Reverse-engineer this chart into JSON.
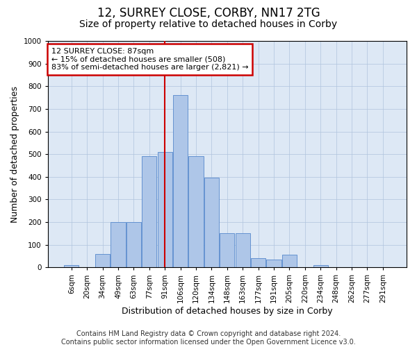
{
  "title": "12, SURREY CLOSE, CORBY, NN17 2TG",
  "subtitle": "Size of property relative to detached houses in Corby",
  "xlabel": "Distribution of detached houses by size in Corby",
  "ylabel": "Number of detached properties",
  "categories": [
    "6sqm",
    "20sqm",
    "34sqm",
    "49sqm",
    "63sqm",
    "77sqm",
    "91sqm",
    "106sqm",
    "120sqm",
    "134sqm",
    "148sqm",
    "163sqm",
    "177sqm",
    "191sqm",
    "205sqm",
    "220sqm",
    "234sqm",
    "248sqm",
    "262sqm",
    "277sqm",
    "291sqm"
  ],
  "values": [
    10,
    0,
    60,
    200,
    200,
    490,
    510,
    760,
    490,
    395,
    150,
    150,
    40,
    35,
    55,
    0,
    10,
    0,
    0,
    0,
    0
  ],
  "bar_color": "#aec6e8",
  "bar_edge_color": "#5588cc",
  "vline_color": "#cc0000",
  "vline_x_index": 6.0,
  "annotation_text": "12 SURREY CLOSE: 87sqm\n← 15% of detached houses are smaller (508)\n83% of semi-detached houses are larger (2,821) →",
  "annotation_box_color": "#cc0000",
  "ylim": [
    0,
    1000
  ],
  "yticks": [
    0,
    100,
    200,
    300,
    400,
    500,
    600,
    700,
    800,
    900,
    1000
  ],
  "footer": "Contains HM Land Registry data © Crown copyright and database right 2024.\nContains public sector information licensed under the Open Government Licence v3.0.",
  "title_fontsize": 12,
  "subtitle_fontsize": 10,
  "axis_label_fontsize": 9,
  "tick_fontsize": 7.5,
  "annotation_fontsize": 8,
  "footer_fontsize": 7,
  "background_color": "#ffffff",
  "plot_bg_color": "#dde8f5",
  "grid_color": "#b0c4de"
}
